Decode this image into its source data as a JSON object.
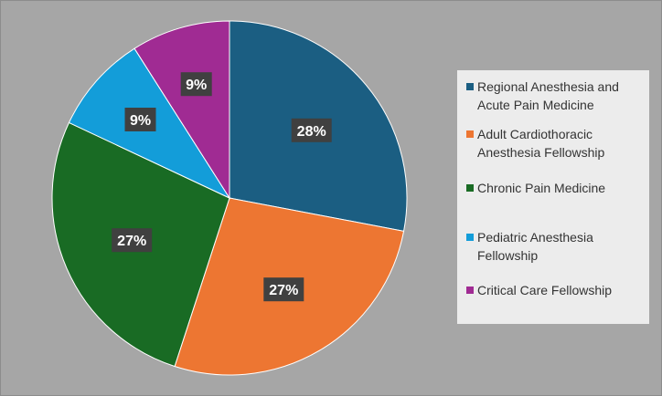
{
  "chart_data": {
    "type": "pie",
    "title": "",
    "categories": [
      "Regional Anesthesia and Acute Pain Medicine",
      "Adult Cardiothoracic Anesthesia Fellowship",
      "Chronic Pain Medicine",
      "Pediatric Anesthesia Fellowship",
      "Critical Care Fellowship"
    ],
    "values": [
      28,
      27,
      27,
      9,
      9
    ],
    "data_labels": [
      "28%",
      "27%",
      "27%",
      "9%",
      "9%"
    ],
    "colors": [
      "#1b5e82",
      "#ed7632",
      "#196b24",
      "#139dd9",
      "#a02b93"
    ],
    "legend_position": "right"
  }
}
